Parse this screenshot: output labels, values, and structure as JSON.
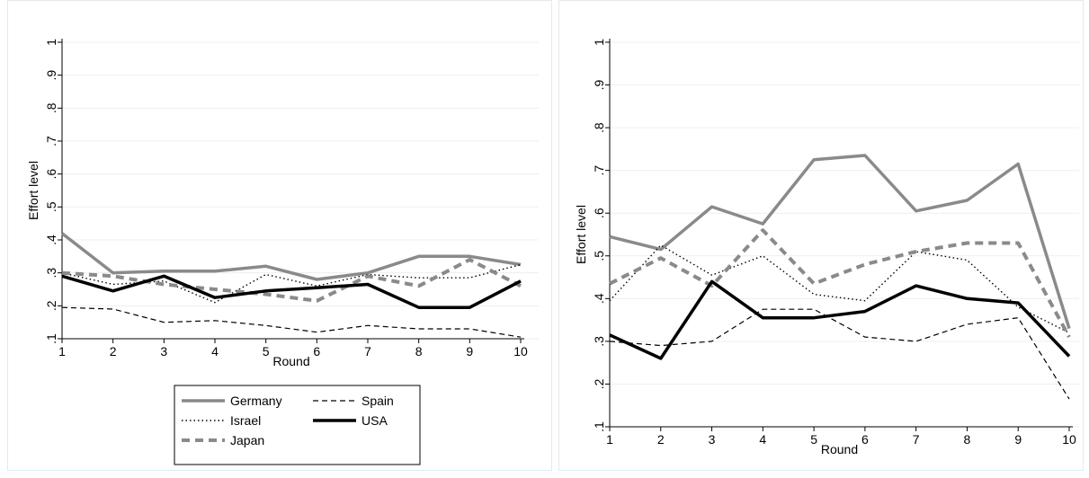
{
  "chart_data": [
    {
      "type": "line",
      "xlabel": "Round",
      "ylabel": "Effort level",
      "x": [
        1,
        2,
        3,
        4,
        5,
        6,
        7,
        8,
        9,
        10
      ],
      "ylim": [
        0.1,
        1.0
      ],
      "yticks": [
        ".1",
        ".2",
        ".3",
        ".4",
        ".5",
        ".6",
        ".7",
        ".8",
        ".9",
        "1"
      ],
      "xticks": [
        "1",
        "2",
        "3",
        "4",
        "5",
        "6",
        "7",
        "8",
        "9",
        "10"
      ],
      "grid": true,
      "legend_position": "bottom",
      "series": [
        {
          "name": "Germany",
          "color": "#8a8a8a",
          "style": "thick-solid",
          "values": [
            0.42,
            0.3,
            0.305,
            0.305,
            0.32,
            0.28,
            0.3,
            0.35,
            0.35,
            0.325
          ]
        },
        {
          "name": "Israel",
          "color": "#000000",
          "style": "dotted",
          "values": [
            0.3,
            0.265,
            0.275,
            0.21,
            0.295,
            0.26,
            0.295,
            0.285,
            0.285,
            0.325
          ]
        },
        {
          "name": "Japan",
          "color": "#8a8a8a",
          "style": "thick-dashed",
          "values": [
            0.3,
            0.29,
            0.265,
            0.25,
            0.235,
            0.215,
            0.29,
            0.26,
            0.34,
            0.26
          ]
        },
        {
          "name": "Spain",
          "color": "#000000",
          "style": "thin-dashed",
          "values": [
            0.195,
            0.19,
            0.15,
            0.155,
            0.14,
            0.12,
            0.14,
            0.13,
            0.13,
            0.105
          ]
        },
        {
          "name": "USA",
          "color": "#000000",
          "style": "thick-solid",
          "values": [
            0.29,
            0.245,
            0.29,
            0.225,
            0.245,
            0.255,
            0.265,
            0.195,
            0.195,
            0.275
          ]
        }
      ]
    },
    {
      "type": "line",
      "xlabel": "Round",
      "ylabel": "Effort level",
      "x": [
        1,
        2,
        3,
        4,
        5,
        6,
        7,
        8,
        9,
        10
      ],
      "ylim": [
        0.1,
        1.0
      ],
      "yticks": [
        ".1",
        ".2",
        ".3",
        ".4",
        ".5",
        ".6",
        ".7",
        ".8",
        ".9",
        "1"
      ],
      "xticks": [
        "1",
        "2",
        "3",
        "4",
        "5",
        "6",
        "7",
        "8",
        "9",
        "10"
      ],
      "grid": true,
      "series": [
        {
          "name": "Germany",
          "color": "#8a8a8a",
          "style": "thick-solid",
          "values": [
            0.545,
            0.515,
            0.615,
            0.575,
            0.725,
            0.735,
            0.605,
            0.63,
            0.715,
            0.33
          ]
        },
        {
          "name": "Israel",
          "color": "#000000",
          "style": "dotted",
          "values": [
            0.395,
            0.525,
            0.455,
            0.5,
            0.41,
            0.395,
            0.51,
            0.49,
            0.38,
            0.32
          ]
        },
        {
          "name": "Japan",
          "color": "#8a8a8a",
          "style": "thick-dashed",
          "values": [
            0.435,
            0.495,
            0.43,
            0.56,
            0.435,
            0.48,
            0.51,
            0.53,
            0.53,
            0.31
          ]
        },
        {
          "name": "Spain",
          "color": "#000000",
          "style": "thin-dashed",
          "values": [
            0.3,
            0.29,
            0.3,
            0.375,
            0.375,
            0.31,
            0.3,
            0.34,
            0.355,
            0.165
          ]
        },
        {
          "name": "USA",
          "color": "#000000",
          "style": "thick-solid",
          "values": [
            0.315,
            0.26,
            0.44,
            0.355,
            0.355,
            0.37,
            0.43,
            0.4,
            0.39,
            0.265
          ]
        }
      ]
    }
  ]
}
